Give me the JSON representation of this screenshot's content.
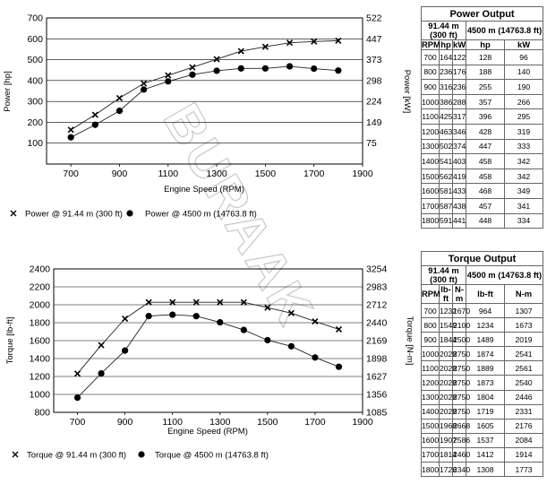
{
  "watermark": "BURAAK",
  "chart_data": [
    {
      "type": "line",
      "title": "",
      "xlabel": "Engine Speed (RPM)",
      "ylabel": "Power [hp]",
      "y2label": "Power [kW]",
      "x": [
        700,
        800,
        900,
        1000,
        1100,
        1200,
        1300,
        1400,
        1500,
        1600,
        1700,
        1800
      ],
      "xlim": [
        600,
        1900
      ],
      "xticks": [
        700,
        900,
        1100,
        1300,
        1500,
        1700,
        1900
      ],
      "ylim": [
        0,
        700
      ],
      "yticks": [
        100,
        200,
        300,
        400,
        500,
        600,
        700
      ],
      "y2ticks": [
        75,
        149,
        224,
        298,
        373,
        447,
        522
      ],
      "grid": true,
      "series": [
        {
          "name": "Power @ 91.44 m (300 ft)",
          "marker": "x",
          "values": [
            164,
            236,
            316,
            386,
            425,
            463,
            502,
            541,
            562,
            581,
            587,
            591
          ]
        },
        {
          "name": "Power @ 4500 m (14763.8 ft)",
          "marker": "dot",
          "values": [
            128,
            188,
            255,
            357,
            396,
            428,
            447,
            458,
            458,
            468,
            457,
            448
          ]
        }
      ]
    },
    {
      "type": "line",
      "title": "",
      "xlabel": "Engine Speed (RPM)",
      "ylabel": "Torque [lb-ft]",
      "y2label": "Torque [N-m]",
      "x": [
        700,
        800,
        900,
        1000,
        1100,
        1200,
        1300,
        1400,
        1500,
        1600,
        1700,
        1800
      ],
      "xlim": [
        600,
        1900
      ],
      "xticks": [
        700,
        900,
        1100,
        1300,
        1500,
        1700,
        1900
      ],
      "ylim": [
        800,
        2400
      ],
      "yticks": [
        800,
        1000,
        1200,
        1400,
        1600,
        1800,
        2000,
        2200,
        2400
      ],
      "y2ticks": [
        1085,
        1356,
        1627,
        1898,
        2169,
        2440,
        2712,
        2983,
        3254
      ],
      "grid": true,
      "series": [
        {
          "name": "Torque @ 91.44 m (300 ft)",
          "marker": "x",
          "values": [
            1232,
            1549,
            1844,
            2028,
            2028,
            2028,
            2028,
            2028,
            1968,
            1907,
            1814,
            1726
          ]
        },
        {
          "name": "Torque @ 4500 m (14763.8 ft)",
          "marker": "dot",
          "values": [
            964,
            1234,
            1489,
            1874,
            1889,
            1873,
            1804,
            1719,
            1605,
            1537,
            1412,
            1308
          ]
        }
      ]
    }
  ],
  "power_table": {
    "title": "Power Output",
    "col_a": "91.44 m (300 ft)",
    "col_b": "4500 m (14763.8 ft)",
    "headers": [
      "RPM",
      "hp",
      "kW",
      "hp",
      "kW"
    ],
    "rows": [
      [
        "700",
        "164",
        "122",
        "128",
        "96"
      ],
      [
        "800",
        "236",
        "176",
        "188",
        "140"
      ],
      [
        "900",
        "316",
        "236",
        "255",
        "190"
      ],
      [
        "1000",
        "386",
        "288",
        "357",
        "266"
      ],
      [
        "1100",
        "425",
        "317",
        "396",
        "295"
      ],
      [
        "1200",
        "463",
        "346",
        "428",
        "319"
      ],
      [
        "1300",
        "502",
        "374",
        "447",
        "333"
      ],
      [
        "1400",
        "541",
        "403",
        "458",
        "342"
      ],
      [
        "1500",
        "562",
        "419",
        "458",
        "342"
      ],
      [
        "1600",
        "581",
        "433",
        "468",
        "349"
      ],
      [
        "1700",
        "587",
        "438",
        "457",
        "341"
      ],
      [
        "1800",
        "591",
        "441",
        "448",
        "334"
      ]
    ]
  },
  "torque_table": {
    "title": "Torque Output",
    "col_a": "91.44 m (300 ft)",
    "col_b": "4500 m (14763.8 ft)",
    "headers": [
      "RPM",
      "lb-ft",
      "N-m",
      "lb-ft",
      "N-m"
    ],
    "rows": [
      [
        "700",
        "1232",
        "1670",
        "964",
        "1307"
      ],
      [
        "800",
        "1549",
        "2100",
        "1234",
        "1673"
      ],
      [
        "900",
        "1844",
        "2500",
        "1489",
        "2019"
      ],
      [
        "1000",
        "2028",
        "2750",
        "1874",
        "2541"
      ],
      [
        "1100",
        "2028",
        "2750",
        "1889",
        "2561"
      ],
      [
        "1200",
        "2028",
        "2750",
        "1873",
        "2540"
      ],
      [
        "1300",
        "2028",
        "2750",
        "1804",
        "2446"
      ],
      [
        "1400",
        "2028",
        "2750",
        "1719",
        "2331"
      ],
      [
        "1500",
        "1968",
        "2668",
        "1605",
        "2176"
      ],
      [
        "1600",
        "1907",
        "2586",
        "1537",
        "2084"
      ],
      [
        "1700",
        "1814",
        "2460",
        "1412",
        "1914"
      ],
      [
        "1800",
        "1726",
        "2340",
        "1308",
        "1773"
      ]
    ]
  }
}
